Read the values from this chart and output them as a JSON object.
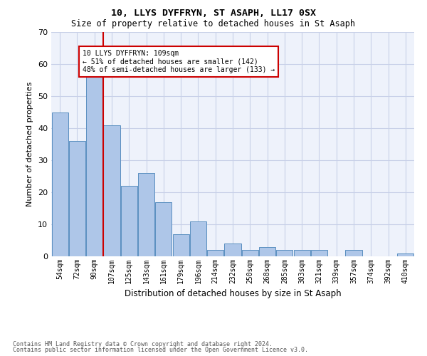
{
  "title1": "10, LLYS DYFFRYN, ST ASAPH, LL17 0SX",
  "title2": "Size of property relative to detached houses in St Asaph",
  "xlabel": "Distribution of detached houses by size in St Asaph",
  "ylabel": "Number of detached properties",
  "categories": [
    "54sqm",
    "72sqm",
    "90sqm",
    "107sqm",
    "125sqm",
    "143sqm",
    "161sqm",
    "179sqm",
    "196sqm",
    "214sqm",
    "232sqm",
    "250sqm",
    "268sqm",
    "285sqm",
    "303sqm",
    "321sqm",
    "339sqm",
    "357sqm",
    "374sqm",
    "392sqm",
    "410sqm"
  ],
  "values": [
    45,
    36,
    59,
    41,
    22,
    26,
    17,
    7,
    11,
    2,
    4,
    2,
    3,
    2,
    2,
    2,
    0,
    2,
    0,
    0,
    1
  ],
  "bar_color": "#aec6e8",
  "bar_edge_color": "#5a8fc0",
  "red_line_x": 3,
  "marker_label": "10 LLYS DYFFRYN: 109sqm",
  "annotation_line1": "← 51% of detached houses are smaller (142)",
  "annotation_line2": "48% of semi-detached houses are larger (133) →",
  "red_line_color": "#cc0000",
  "annotation_box_color": "#ffffff",
  "annotation_box_edge": "#cc0000",
  "ylim": [
    0,
    70
  ],
  "yticks": [
    0,
    10,
    20,
    30,
    40,
    50,
    60,
    70
  ],
  "background_color": "#ffffff",
  "plot_bg_color": "#eef2fb",
  "grid_color": "#c8d0e8",
  "footer_line1": "Contains HM Land Registry data © Crown copyright and database right 2024.",
  "footer_line2": "Contains public sector information licensed under the Open Government Licence v3.0."
}
